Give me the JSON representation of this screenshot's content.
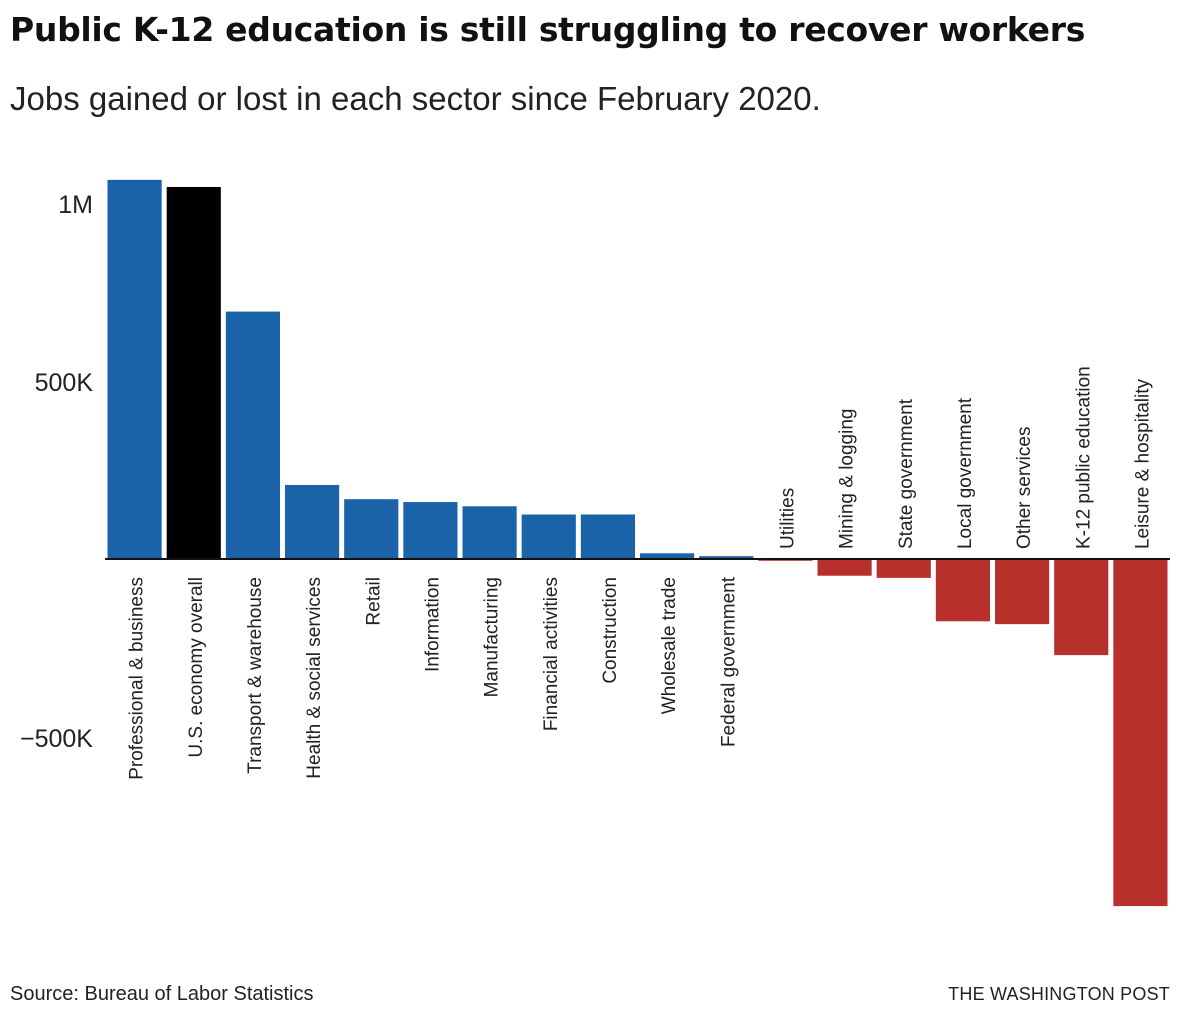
{
  "title": "Public K-12 education is still struggling to recover workers",
  "subtitle": "Jobs gained or lost in each sector since February 2020.",
  "source": "Source: Bureau of Labor Statistics",
  "credit": "THE WASHINGTON POST",
  "colors": {
    "positive": "#1a63a8",
    "overall": "#000000",
    "negative": "#b8302c",
    "axis": "#111111"
  },
  "chart_data": {
    "type": "bar",
    "title": "Public K-12 education is still struggling to recover workers",
    "subtitle": "Jobs gained or lost in each sector since February 2020.",
    "xlabel": "",
    "ylabel": "",
    "ylim": [
      -980000,
      1080000
    ],
    "yticks": [
      {
        "value": 1000000,
        "label": "1M"
      },
      {
        "value": 500000,
        "label": "500K"
      },
      {
        "value": -500000,
        "label": "−500K"
      }
    ],
    "grid": false,
    "categories": [
      "Professional & business",
      "U.S. economy overall",
      "Transport & warehouse",
      "Health & social services",
      "Retail",
      "Information",
      "Manufacturing",
      "Financial activities",
      "Construction",
      "Wholesale trade",
      "Federal government",
      "Utilities",
      "Mining & logging",
      "State government",
      "Local government",
      "Other services",
      "K-12 public education",
      "Leisure & hospitality"
    ],
    "values": [
      1065000,
      1045000,
      695000,
      208000,
      168000,
      160000,
      148000,
      125000,
      125000,
      16000,
      8000,
      -5000,
      -47000,
      -53000,
      -175000,
      -183000,
      -270000,
      -975000
    ],
    "highlight": "U.S. economy overall"
  }
}
